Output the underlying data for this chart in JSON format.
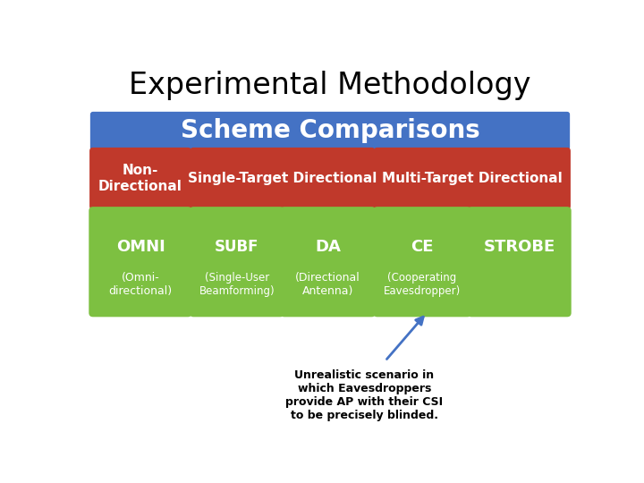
{
  "title": "Experimental Methodology",
  "title_fontsize": 24,
  "title_color": "#000000",
  "background_color": "#ffffff",
  "header_text": "Scheme Comparisons",
  "header_bg": "#4472C4",
  "header_text_color": "#ffffff",
  "header_fontsize": 20,
  "red_bg": "#C0392B",
  "green_bg": "#7DC041",
  "arrow_color": "#4472C4",
  "text_white": "#ffffff",
  "text_black": "#000000",
  "annotation_text": "Unrealistic scenario in\nwhich Eavesdroppers\nprovide AP with their CSI\nto be precisely blinded."
}
